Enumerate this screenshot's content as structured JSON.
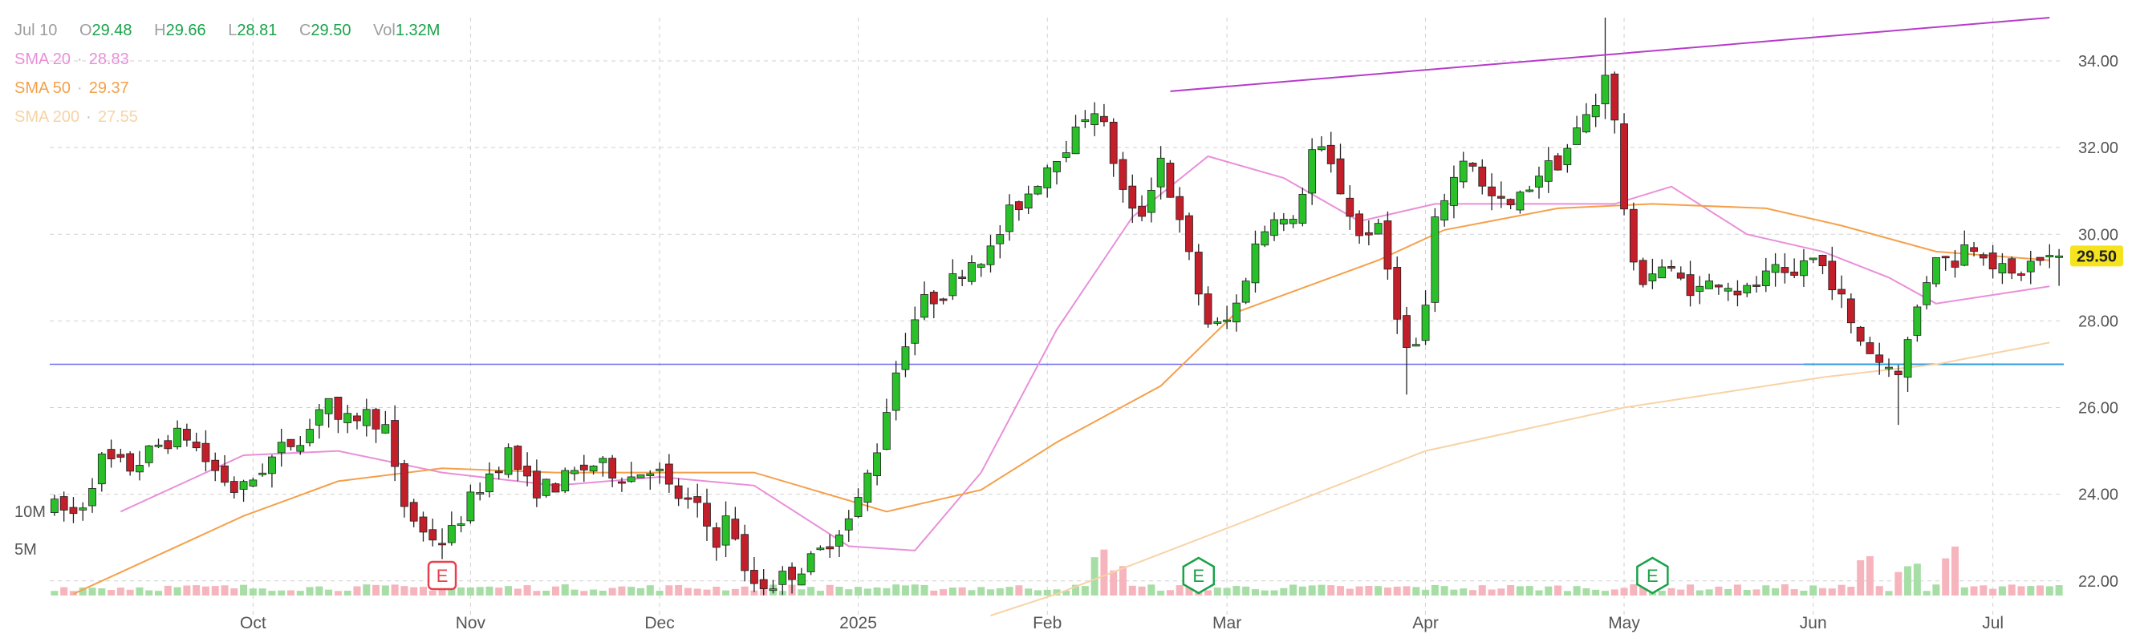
{
  "ohlc_header": {
    "date": "Jul 10",
    "open_label": "O",
    "open": "29.48",
    "high_label": "H",
    "high": "29.66",
    "low_label": "L",
    "low": "28.81",
    "close_label": "C",
    "close": "29.50",
    "volume_label": "Vol",
    "volume": "1.32M"
  },
  "indicators": [
    {
      "name": "SMA 20",
      "value": "28.83",
      "color": "#e98fd9"
    },
    {
      "name": "SMA 50",
      "value": "29.37",
      "color": "#f5a04a"
    },
    {
      "name": "SMA 200",
      "value": "27.55",
      "color": "#f7d3a6"
    }
  ],
  "price_badge": "29.50",
  "colors": {
    "up": "#2ac02a",
    "down": "#c21f2a",
    "up_volume": "#a6dea6",
    "down_volume": "#f6b5bd",
    "trendline": "#b63cc9",
    "support": "#6c6cf0",
    "support_recent": "#2f9ce0",
    "badge": "#f5e31e",
    "earnings": "#e8414d",
    "earnings_green": "#1aa34a"
  },
  "chart_data": {
    "type": "candlestick",
    "x_labels": [
      "Oct",
      "Nov",
      "Dec",
      "2025",
      "Feb",
      "Mar",
      "Apr",
      "May",
      "Jun",
      "Jul"
    ],
    "y_ticks": [
      "22.00",
      "24.00",
      "26.00",
      "28.00",
      "30.00",
      "32.00",
      "34.00"
    ],
    "ylim": [
      21.2,
      35.0
    ],
    "volume_ticks": [
      "5M",
      "10M"
    ],
    "earnings_markers": [
      {
        "label": "E",
        "date": "Oct 31",
        "style": "red"
      },
      {
        "label": "E",
        "date": "Feb 25",
        "style": "green"
      },
      {
        "label": "E",
        "date": "May 6",
        "style": "green"
      }
    ],
    "support_level": 27.0,
    "trendline": [
      {
        "date": "Feb 20",
        "price": 33.3
      },
      {
        "date": "Jul 10",
        "price": 35.0
      }
    ],
    "series": [
      {
        "name": "SMA 20",
        "points": [
          [
            "Sep 12",
            23.6
          ],
          [
            "Sep 30",
            24.9
          ],
          [
            "Oct 15",
            25.0
          ],
          [
            "Oct 31",
            24.5
          ],
          [
            "Nov 15",
            24.2
          ],
          [
            "Dec 1",
            24.4
          ],
          [
            "Dec 16",
            24.2
          ],
          [
            "Dec 31",
            22.8
          ],
          [
            "Jan 10",
            22.7
          ],
          [
            "Jan 20",
            24.5
          ],
          [
            "Feb 3",
            27.8
          ],
          [
            "Feb 14",
            30.4
          ],
          [
            "Feb 26",
            31.8
          ],
          [
            "Mar 10",
            31.3
          ],
          [
            "Mar 21",
            30.3
          ],
          [
            "Apr 3",
            30.7
          ],
          [
            "Apr 14",
            30.7
          ],
          [
            "Apr 30",
            30.7
          ],
          [
            "May 9",
            31.1
          ],
          [
            "May 20",
            30.0
          ],
          [
            "Jun 3",
            29.6
          ],
          [
            "Jun 13",
            29.0
          ],
          [
            "Jun 20",
            28.4
          ],
          [
            "Jul 1",
            28.6
          ],
          [
            "Jul 10",
            28.8
          ]
        ]
      },
      {
        "name": "SMA 50",
        "points": [
          [
            "Sep 4",
            21.7
          ],
          [
            "Sep 30",
            23.5
          ],
          [
            "Oct 15",
            24.3
          ],
          [
            "Oct 31",
            24.6
          ],
          [
            "Nov 15",
            24.5
          ],
          [
            "Dec 2",
            24.5
          ],
          [
            "Dec 16",
            24.5
          ],
          [
            "Jan 6",
            23.6
          ],
          [
            "Jan 20",
            24.1
          ],
          [
            "Feb 3",
            25.2
          ],
          [
            "Feb 18",
            26.5
          ],
          [
            "Mar 3",
            28.2
          ],
          [
            "Mar 24",
            29.4
          ],
          [
            "Apr 4",
            30.1
          ],
          [
            "Apr 21",
            30.6
          ],
          [
            "May 6",
            30.7
          ],
          [
            "May 23",
            30.6
          ],
          [
            "Jun 6",
            30.2
          ],
          [
            "Jun 20",
            29.6
          ],
          [
            "Jul 10",
            29.4
          ]
        ]
      },
      {
        "name": "SMA 200",
        "points": [
          [
            "Jan 21",
            21.2
          ],
          [
            "Feb 3",
            21.7
          ],
          [
            "Mar 3",
            23.3
          ],
          [
            "Apr 1",
            25.0
          ],
          [
            "May 1",
            26.0
          ],
          [
            "Jun 2",
            26.7
          ],
          [
            "Jun 20",
            27.0
          ],
          [
            "Jul 10",
            27.5
          ]
        ]
      }
    ]
  }
}
